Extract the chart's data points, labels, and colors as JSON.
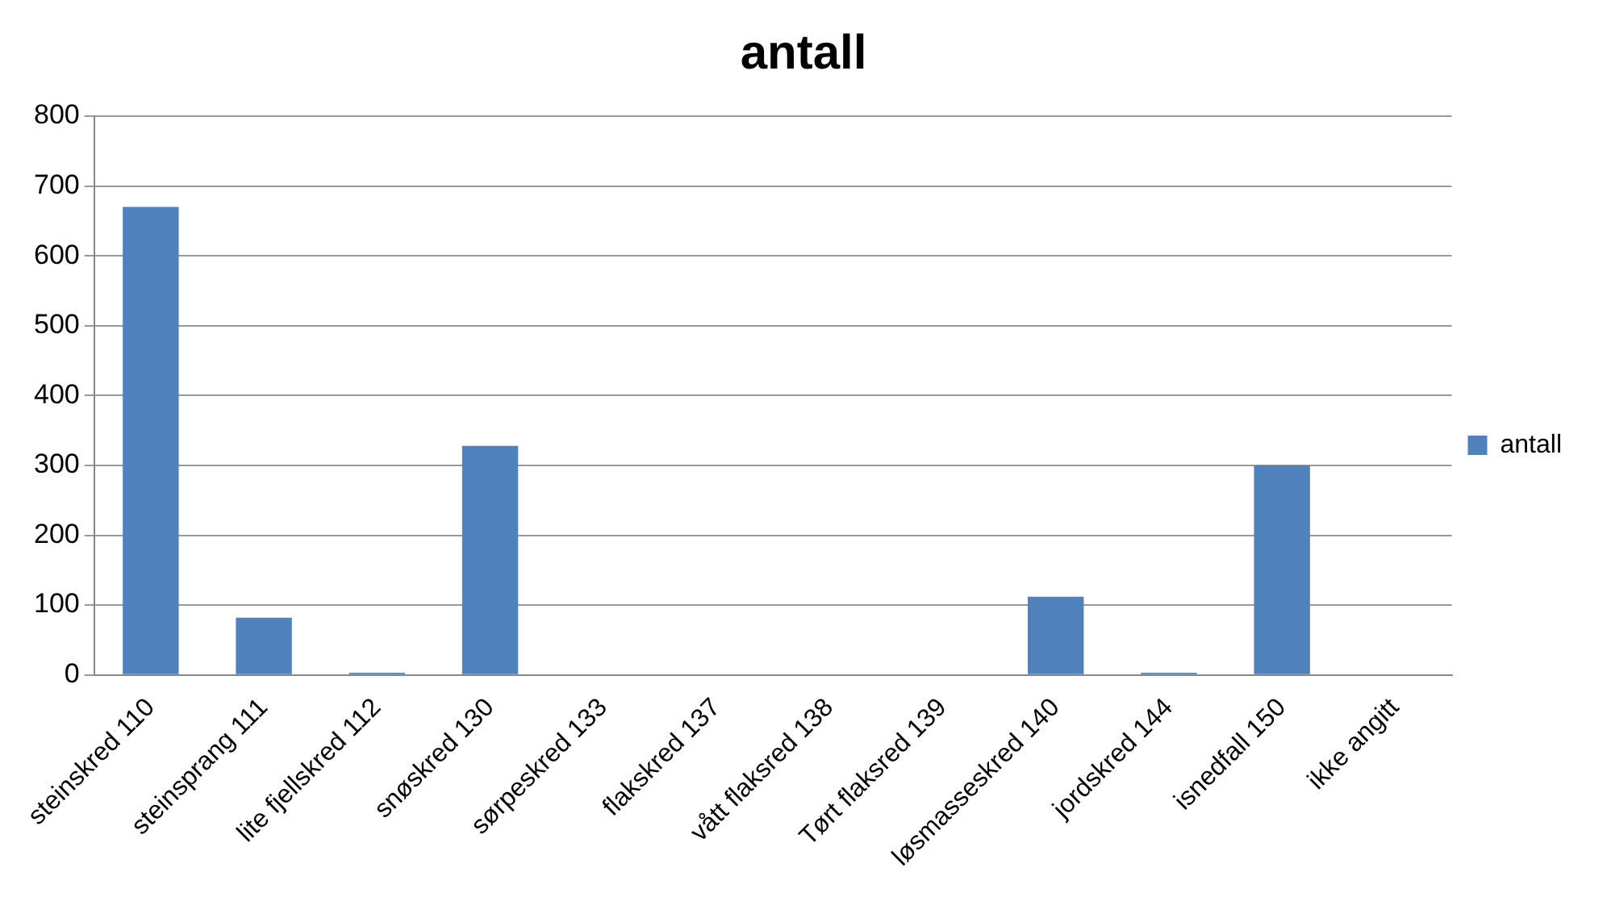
{
  "chart_data": {
    "type": "bar",
    "title": "antall",
    "categories": [
      "steinskred 110",
      "steinsprang 111",
      "lite fjellskred 112",
      "snøskred 130",
      "sørpeskred 133",
      "flakskred 137",
      "vått flaksred 138",
      "Tørt flaksred 139",
      "løsmasseskred 140",
      "jordskred 144",
      "isnedfall 150",
      "ikke angitt"
    ],
    "series": [
      {
        "name": "antall",
        "color": "#4f81bd",
        "values": [
          670,
          82,
          3,
          328,
          0,
          0,
          0,
          0,
          112,
          3,
          300,
          0
        ]
      }
    ],
    "ylim": [
      0,
      800
    ],
    "yticks": [
      0,
      100,
      200,
      300,
      400,
      500,
      600,
      700,
      800
    ],
    "grid": "y",
    "legend": "right"
  }
}
